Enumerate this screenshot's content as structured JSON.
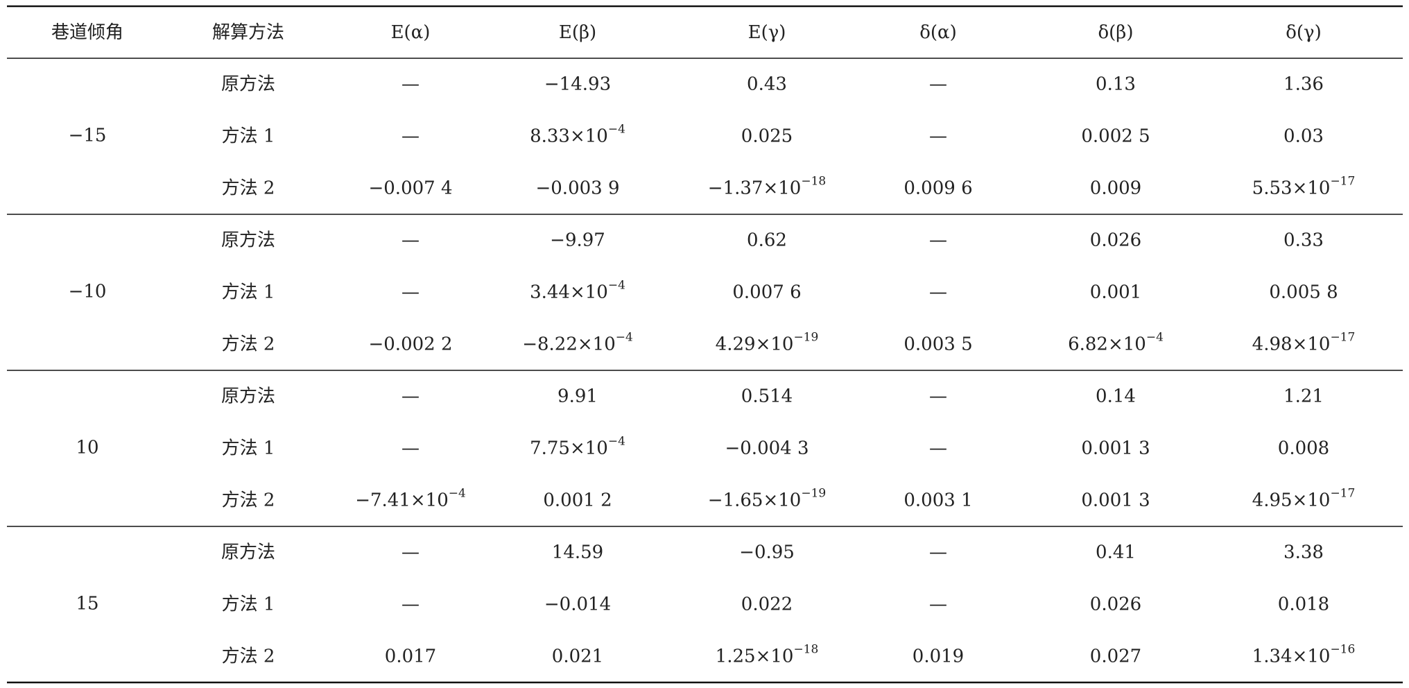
{
  "header": [
    "巷道倾角",
    "解算方法",
    "E(α)",
    "E(β)",
    "E(γ)",
    "δ(α)",
    "δ(β)",
    "δ(γ)"
  ],
  "groups": [
    {
      "angle": "−15",
      "rows": [
        {
          "method": "原方法",
          "cells": [
            "—",
            "−14.93",
            "0.43",
            "—",
            "0.13",
            "1.36"
          ]
        },
        {
          "method": "方法 1",
          "cells": [
            "—",
            {
              "text": "8.33×10",
              "sup": "−4"
            },
            "0.025",
            "—",
            "0.002 5",
            "0.03"
          ]
        },
        {
          "method": "方法 2",
          "cells": [
            "−0.007 4",
            "−0.003 9",
            {
              "text": "−1.37×10",
              "sup": "−18"
            },
            "0.009 6",
            "0.009",
            {
              "text": "5.53×10",
              "sup": "−17"
            }
          ]
        }
      ]
    },
    {
      "angle": "−10",
      "rows": [
        {
          "method": "原方法",
          "cells": [
            "—",
            "−9.97",
            "0.62",
            "—",
            "0.026",
            "0.33"
          ]
        },
        {
          "method": "方法 1",
          "cells": [
            "—",
            {
              "text": "3.44×10",
              "sup": "−4"
            },
            "0.007 6",
            "—",
            "0.001",
            "0.005 8"
          ]
        },
        {
          "method": "方法 2",
          "cells": [
            "−0.002 2",
            {
              "text": "−8.22×10",
              "sup": "−4"
            },
            {
              "text": "4.29×10",
              "sup": "−19"
            },
            "0.003 5",
            {
              "text": "6.82×10",
              "sup": "−4"
            },
            {
              "text": "4.98×10",
              "sup": "−17"
            }
          ]
        }
      ]
    },
    {
      "angle": "10",
      "rows": [
        {
          "method": "原方法",
          "cells": [
            "—",
            "9.91",
            "0.514",
            "—",
            "0.14",
            "1.21"
          ]
        },
        {
          "method": "方法 1",
          "cells": [
            "—",
            {
              "text": "7.75×10",
              "sup": "−4"
            },
            "−0.004 3",
            "—",
            "0.001 3",
            "0.008"
          ]
        },
        {
          "method": "方法 2",
          "cells": [
            {
              "text": "−7.41×10",
              "sup": "−4"
            },
            "0.001 2",
            {
              "text": "−1.65×10",
              "sup": "−19"
            },
            "0.003 1",
            "0.001 3",
            {
              "text": "4.95×10",
              "sup": "−17"
            }
          ]
        }
      ]
    },
    {
      "angle": "15",
      "rows": [
        {
          "method": "原方法",
          "cells": [
            "—",
            "14.59",
            "−0.95",
            "—",
            "0.41",
            "3.38"
          ]
        },
        {
          "method": "方法 1",
          "cells": [
            "—",
            "−0.014",
            "0.022",
            "—",
            "0.026",
            "0.018"
          ]
        },
        {
          "method": "方法 2",
          "cells": [
            "0.017",
            "0.021",
            {
              "text": "1.25×10",
              "sup": "−18"
            },
            "0.019",
            "0.027",
            {
              "text": "1.34×10",
              "sup": "−16"
            }
          ]
        }
      ]
    }
  ]
}
